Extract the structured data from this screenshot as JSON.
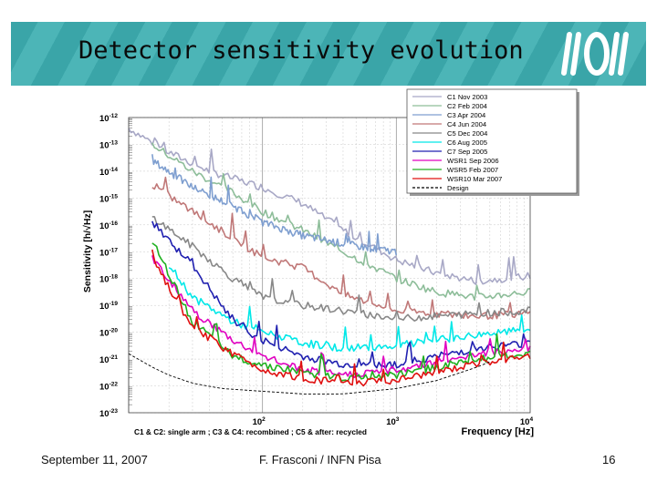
{
  "slide": {
    "title": "Detector sensitivity evolution",
    "footer_date": "September 11, 2007",
    "footer_author": "F. Frasconi / INFN Pisa",
    "page_number": "16",
    "logo_icon": "ego-virgo-logo-icon"
  },
  "chart_data": {
    "type": "line",
    "title": "",
    "xlabel": "Frequency [Hz]",
    "ylabel": "Sensitivity [h/√Hz]",
    "xscale": "log",
    "yscale": "log",
    "xlim": [
      10,
      10000
    ],
    "ylim_exp": [
      -23,
      -12
    ],
    "x_tick_exponents": [
      2,
      3,
      4
    ],
    "y_tick_exponents": [
      -12,
      -13,
      -14,
      -15,
      -16,
      -17,
      -18,
      -19,
      -20,
      -21,
      -22,
      -23
    ],
    "tick_base": "10",
    "legend_position": "top-right",
    "annotation": "C1 & C2: single arm ; C3 & C4: recombined ; C5 & after: recycled",
    "series": [
      {
        "name": "C1 Nov 2003",
        "color": "#a8a8c6",
        "points": [
          [
            10,
            -12.4
          ],
          [
            20,
            -13.3
          ],
          [
            40,
            -14.0
          ],
          [
            100,
            -14.6
          ],
          [
            200,
            -15.2
          ],
          [
            400,
            -16.2
          ],
          [
            1000,
            -17.3
          ],
          [
            2000,
            -17.8
          ],
          [
            4000,
            -18.1
          ],
          [
            10000,
            -17.9
          ]
        ]
      },
      {
        "name": "C2 Feb 2004",
        "color": "#8dbd99",
        "points": [
          [
            15,
            -13.0
          ],
          [
            30,
            -14.0
          ],
          [
            60,
            -14.8
          ],
          [
            100,
            -15.5
          ],
          [
            200,
            -16.2
          ],
          [
            400,
            -17.0
          ],
          [
            1000,
            -18.0
          ],
          [
            2000,
            -18.5
          ],
          [
            4000,
            -18.7
          ],
          [
            10000,
            -18.5
          ]
        ]
      },
      {
        "name": "C3 Apr 2004",
        "color": "#7f9fd0",
        "points": [
          [
            15,
            -13.6
          ],
          [
            30,
            -14.6
          ],
          [
            60,
            -15.3
          ],
          [
            100,
            -15.9
          ],
          [
            200,
            -16.4
          ],
          [
            400,
            -16.7
          ],
          [
            700,
            -16.9
          ],
          [
            1000,
            -17.0
          ]
        ]
      },
      {
        "name": "C4 Jun 2004",
        "color": "#c07878",
        "points": [
          [
            15,
            -14.5
          ],
          [
            30,
            -15.5
          ],
          [
            60,
            -16.5
          ],
          [
            100,
            -17.2
          ],
          [
            200,
            -17.6
          ],
          [
            400,
            -18.6
          ],
          [
            1000,
            -19.2
          ],
          [
            2000,
            -19.3
          ],
          [
            4000,
            -19.4
          ],
          [
            10000,
            -19.3
          ]
        ]
      },
      {
        "name": "C5 Dec 2004",
        "color": "#888888",
        "points": [
          [
            15,
            -15.7
          ],
          [
            30,
            -16.8
          ],
          [
            60,
            -18.0
          ],
          [
            100,
            -18.7
          ],
          [
            200,
            -19.0
          ],
          [
            400,
            -19.2
          ],
          [
            1000,
            -19.5
          ],
          [
            2000,
            -19.4
          ],
          [
            4000,
            -19.3
          ],
          [
            10000,
            -19.2
          ]
        ]
      },
      {
        "name": "C6 Aug 2005",
        "color": "#00e8e8",
        "points": [
          [
            20,
            -17.5
          ],
          [
            30,
            -18.7
          ],
          [
            60,
            -19.6
          ],
          [
            100,
            -20.0
          ],
          [
            200,
            -20.4
          ],
          [
            400,
            -20.6
          ],
          [
            1000,
            -20.5
          ],
          [
            2000,
            -20.3
          ],
          [
            4000,
            -20.1
          ],
          [
            10000,
            -19.9
          ]
        ]
      },
      {
        "name": "C7 Sep 2005",
        "color": "#2020b0",
        "points": [
          [
            15,
            -15.9
          ],
          [
            30,
            -17.5
          ],
          [
            60,
            -19.6
          ],
          [
            100,
            -20.3
          ],
          [
            200,
            -20.9
          ],
          [
            400,
            -21.2
          ],
          [
            1000,
            -21.2
          ],
          [
            2000,
            -20.9
          ],
          [
            4000,
            -20.6
          ],
          [
            10000,
            -20.4
          ]
        ]
      },
      {
        "name": "WSR1 Sep 2006",
        "color": "#e000c0",
        "points": [
          [
            15,
            -17.2
          ],
          [
            30,
            -19.2
          ],
          [
            60,
            -20.3
          ],
          [
            100,
            -20.9
          ],
          [
            200,
            -21.4
          ],
          [
            400,
            -21.6
          ],
          [
            1000,
            -21.4
          ],
          [
            2000,
            -21.1
          ],
          [
            4000,
            -20.8
          ],
          [
            10000,
            -20.6
          ]
        ]
      },
      {
        "name": "WSR5 Feb 2007",
        "color": "#20b020",
        "points": [
          [
            15,
            -16.6
          ],
          [
            30,
            -19.6
          ],
          [
            60,
            -20.9
          ],
          [
            100,
            -21.2
          ],
          [
            200,
            -21.5
          ],
          [
            400,
            -21.7
          ],
          [
            1000,
            -21.6
          ],
          [
            2000,
            -21.3
          ],
          [
            4000,
            -21.0
          ],
          [
            10000,
            -20.8
          ]
        ]
      },
      {
        "name": "WSR10 Mar 2007",
        "color": "#e01010",
        "points": [
          [
            15,
            -17.3
          ],
          [
            30,
            -19.8
          ],
          [
            60,
            -20.8
          ],
          [
            100,
            -21.4
          ],
          [
            200,
            -21.7
          ],
          [
            400,
            -21.9
          ],
          [
            1000,
            -21.8
          ],
          [
            2000,
            -21.5
          ],
          [
            4000,
            -21.2
          ],
          [
            10000,
            -20.9
          ]
        ]
      },
      {
        "name": "Design",
        "color": "#000000",
        "dashed": true,
        "points": [
          [
            10,
            -20.8
          ],
          [
            15,
            -21.3
          ],
          [
            20,
            -21.6
          ],
          [
            30,
            -21.9
          ],
          [
            50,
            -22.1
          ],
          [
            100,
            -22.2
          ],
          [
            200,
            -22.3
          ],
          [
            400,
            -22.3
          ],
          [
            1000,
            -22.1
          ],
          [
            2000,
            -21.8
          ],
          [
            4000,
            -21.3
          ],
          [
            5000,
            -21.1
          ]
        ]
      }
    ]
  }
}
